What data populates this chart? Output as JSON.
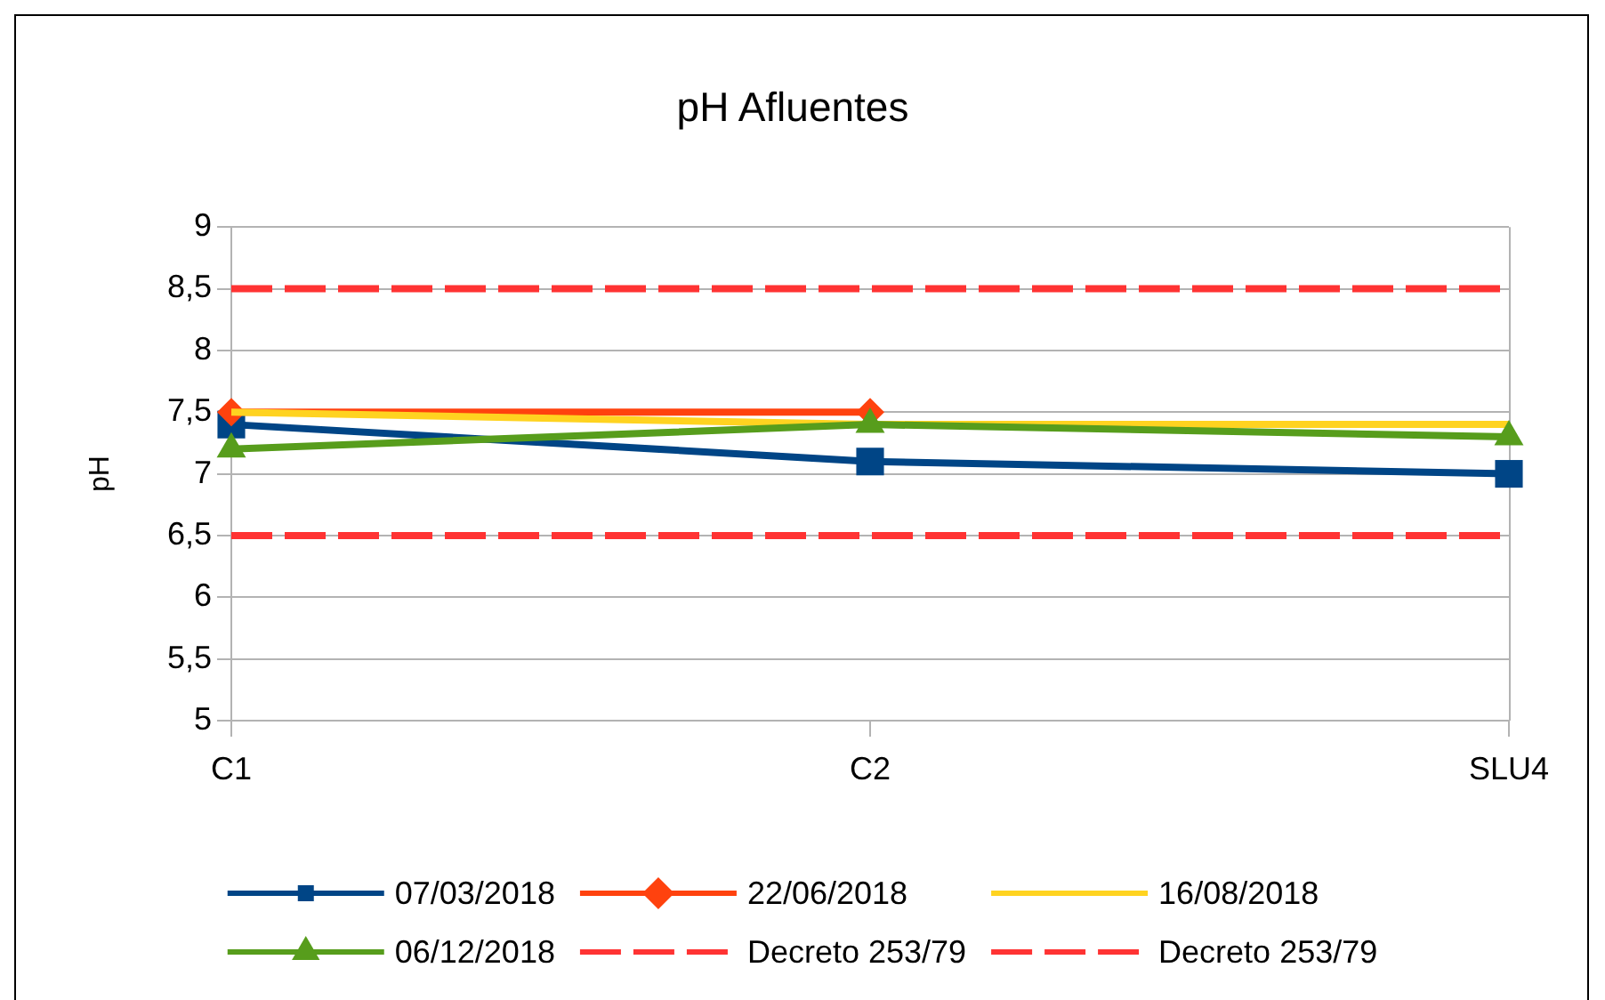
{
  "chart_data": {
    "type": "line",
    "title": "pH Afluentes",
    "ylabel": "pH",
    "categories": [
      "C1",
      "C2",
      "SLU4"
    ],
    "series": [
      {
        "name": "07/03/2018",
        "color": "#004586",
        "values": [
          7.4,
          7.1,
          7.0
        ],
        "marker": "square"
      },
      {
        "name": "22/06/2018",
        "color": "#ff420e",
        "values": [
          7.5,
          7.5,
          null
        ],
        "marker": "diamond"
      },
      {
        "name": "16/08/2018",
        "color": "#ffd320",
        "values": [
          7.5,
          7.4,
          7.4
        ],
        "marker": "none"
      },
      {
        "name": "06/12/2018",
        "color": "#579d1c",
        "values": [
          7.2,
          7.4,
          7.3
        ],
        "marker": "triangle"
      },
      {
        "name": "Decreto 253/79",
        "color": "#ff3333",
        "values": [
          8.5,
          8.5,
          8.5
        ],
        "marker": "none",
        "line_style": "dashed"
      },
      {
        "name": "Decreto 253/79",
        "color": "#ff3333",
        "values": [
          6.5,
          6.5,
          6.5
        ],
        "marker": "none",
        "line_style": "dashed"
      }
    ],
    "ylim": [
      5,
      9
    ],
    "yticks": [
      5,
      {
        "value": 5.5,
        "label": "5,5"
      },
      6,
      {
        "value": 6.5,
        "label": "6,5"
      },
      7,
      {
        "value": 7.5,
        "label": "7,5"
      },
      8,
      {
        "value": 8.5,
        "label": "8,5"
      },
      9
    ],
    "grid": "y",
    "legend": "bottom"
  }
}
